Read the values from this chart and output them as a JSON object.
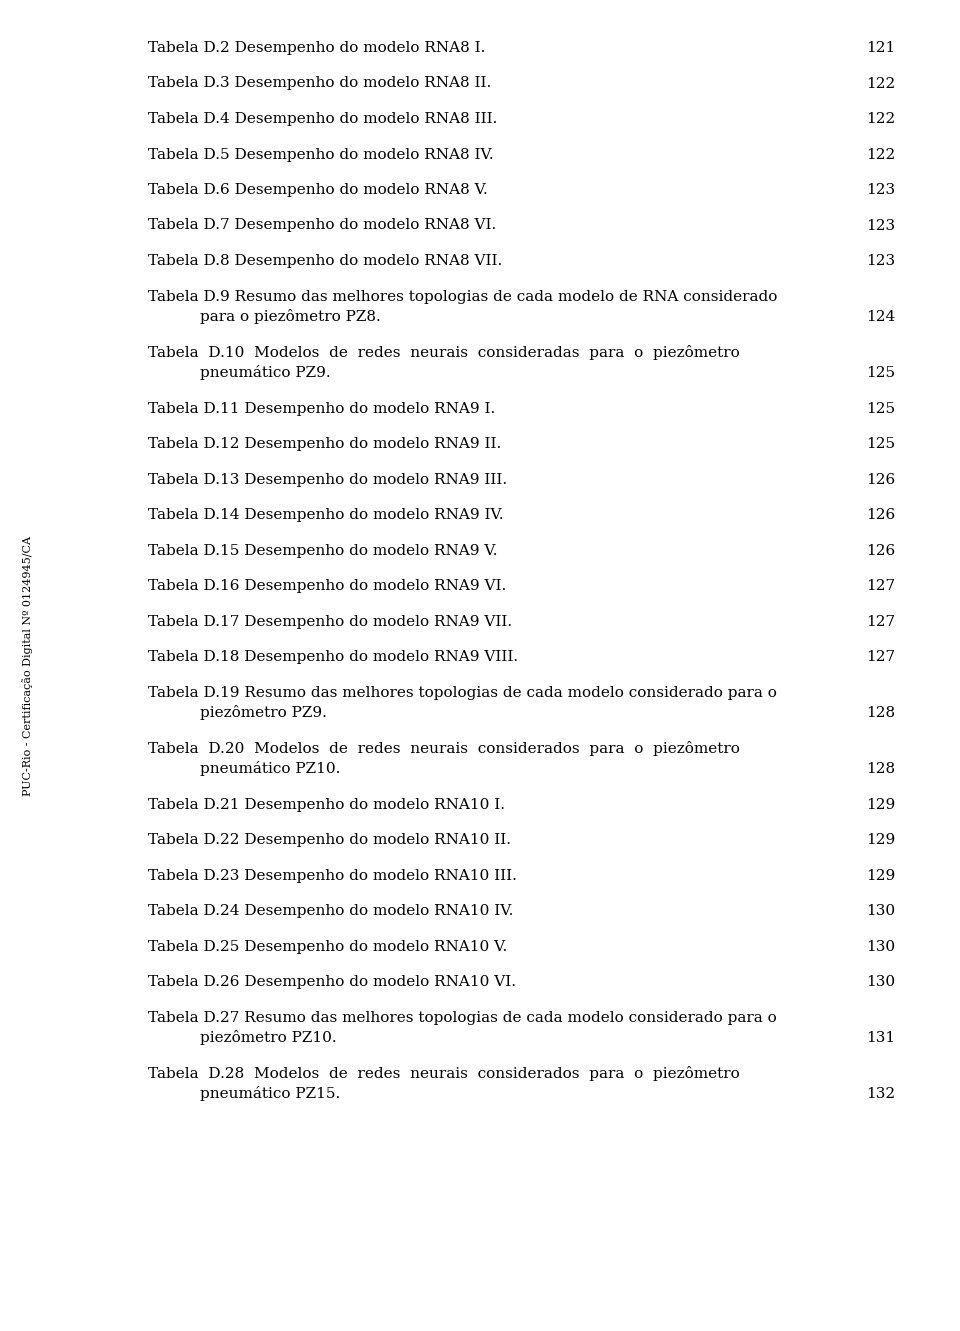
{
  "background_color": "#ffffff",
  "text_color": "#000000",
  "font_size": 11.0,
  "sidebar_text": "PUC-Rio - Certificação Digital Nº 0124945/CA",
  "entries": [
    {
      "type": "single",
      "text": "Tabela D.2 Desempenho do modelo RNA8 I.",
      "page": "121"
    },
    {
      "type": "single",
      "text": "Tabela D.3 Desempenho do modelo RNA8 II.",
      "page": "122"
    },
    {
      "type": "single",
      "text": "Tabela D.4 Desempenho do modelo RNA8 III.",
      "page": "122"
    },
    {
      "type": "single",
      "text": "Tabela D.5 Desempenho do modelo RNA8 IV.",
      "page": "122"
    },
    {
      "type": "single",
      "text": "Tabela D.6 Desempenho do modelo RNA8 V.",
      "page": "123"
    },
    {
      "type": "single",
      "text": "Tabela D.7 Desempenho do modelo RNA8 VI.",
      "page": "123"
    },
    {
      "type": "single",
      "text": "Tabela D.8 Desempenho do modelo RNA8 VII.",
      "page": "123"
    },
    {
      "type": "multi",
      "line1": "Tabela D.9 Resumo das melhores topologias de cada modelo de RNA considerado",
      "line2": "para o piezômetro PZ8.",
      "page": "124",
      "justified": false
    },
    {
      "type": "multi",
      "line1": "Tabela  D.10  Modelos  de  redes  neurais  consideradas  para  o  piezômetro",
      "line2": "pneumático PZ9.",
      "page": "125",
      "justified": true
    },
    {
      "type": "single",
      "text": "Tabela D.11 Desempenho do modelo RNA9 I.",
      "page": "125"
    },
    {
      "type": "single",
      "text": "Tabela D.12 Desempenho do modelo RNA9 II.",
      "page": "125"
    },
    {
      "type": "single",
      "text": "Tabela D.13 Desempenho do modelo RNA9 III.",
      "page": "126"
    },
    {
      "type": "single",
      "text": "Tabela D.14 Desempenho do modelo RNA9 IV.",
      "page": "126"
    },
    {
      "type": "single",
      "text": "Tabela D.15 Desempenho do modelo RNA9 V.",
      "page": "126"
    },
    {
      "type": "single",
      "text": "Tabela D.16 Desempenho do modelo RNA9 VI.",
      "page": "127"
    },
    {
      "type": "single",
      "text": "Tabela D.17 Desempenho do modelo RNA9 VII.",
      "page": "127"
    },
    {
      "type": "single",
      "text": "Tabela D.18 Desempenho do modelo RNA9 VIII.",
      "page": "127"
    },
    {
      "type": "multi",
      "line1": "Tabela D.19 Resumo das melhores topologias de cada modelo considerado para o",
      "line2": "piezômetro PZ9.",
      "page": "128",
      "justified": false
    },
    {
      "type": "multi",
      "line1": "Tabela  D.20  Modelos  de  redes  neurais  considerados  para  o  piezômetro",
      "line2": "pneumático PZ10.",
      "page": "128",
      "justified": true
    },
    {
      "type": "single",
      "text": "Tabela D.21 Desempenho do modelo RNA10 I.",
      "page": "129"
    },
    {
      "type": "single",
      "text": "Tabela D.22 Desempenho do modelo RNA10 II.",
      "page": "129"
    },
    {
      "type": "single",
      "text": "Tabela D.23 Desempenho do modelo RNA10 III.",
      "page": "129"
    },
    {
      "type": "single",
      "text": "Tabela D.24 Desempenho do modelo RNA10 IV.",
      "page": "130"
    },
    {
      "type": "single",
      "text": "Tabela D.25 Desempenho do modelo RNA10 V.",
      "page": "130"
    },
    {
      "type": "single",
      "text": "Tabela D.26 Desempenho do modelo RNA10 VI.",
      "page": "130"
    },
    {
      "type": "multi",
      "line1": "Tabela D.27 Resumo das melhores topologias de cada modelo considerado para o",
      "line2": "piezômetro PZ10.",
      "page": "131",
      "justified": false
    },
    {
      "type": "multi",
      "line1": "Tabela  D.28  Modelos  de  redes  neurais  considerados  para  o  piezômetro",
      "line2": "pneumático PZ15.",
      "page": "132",
      "justified": true
    }
  ]
}
